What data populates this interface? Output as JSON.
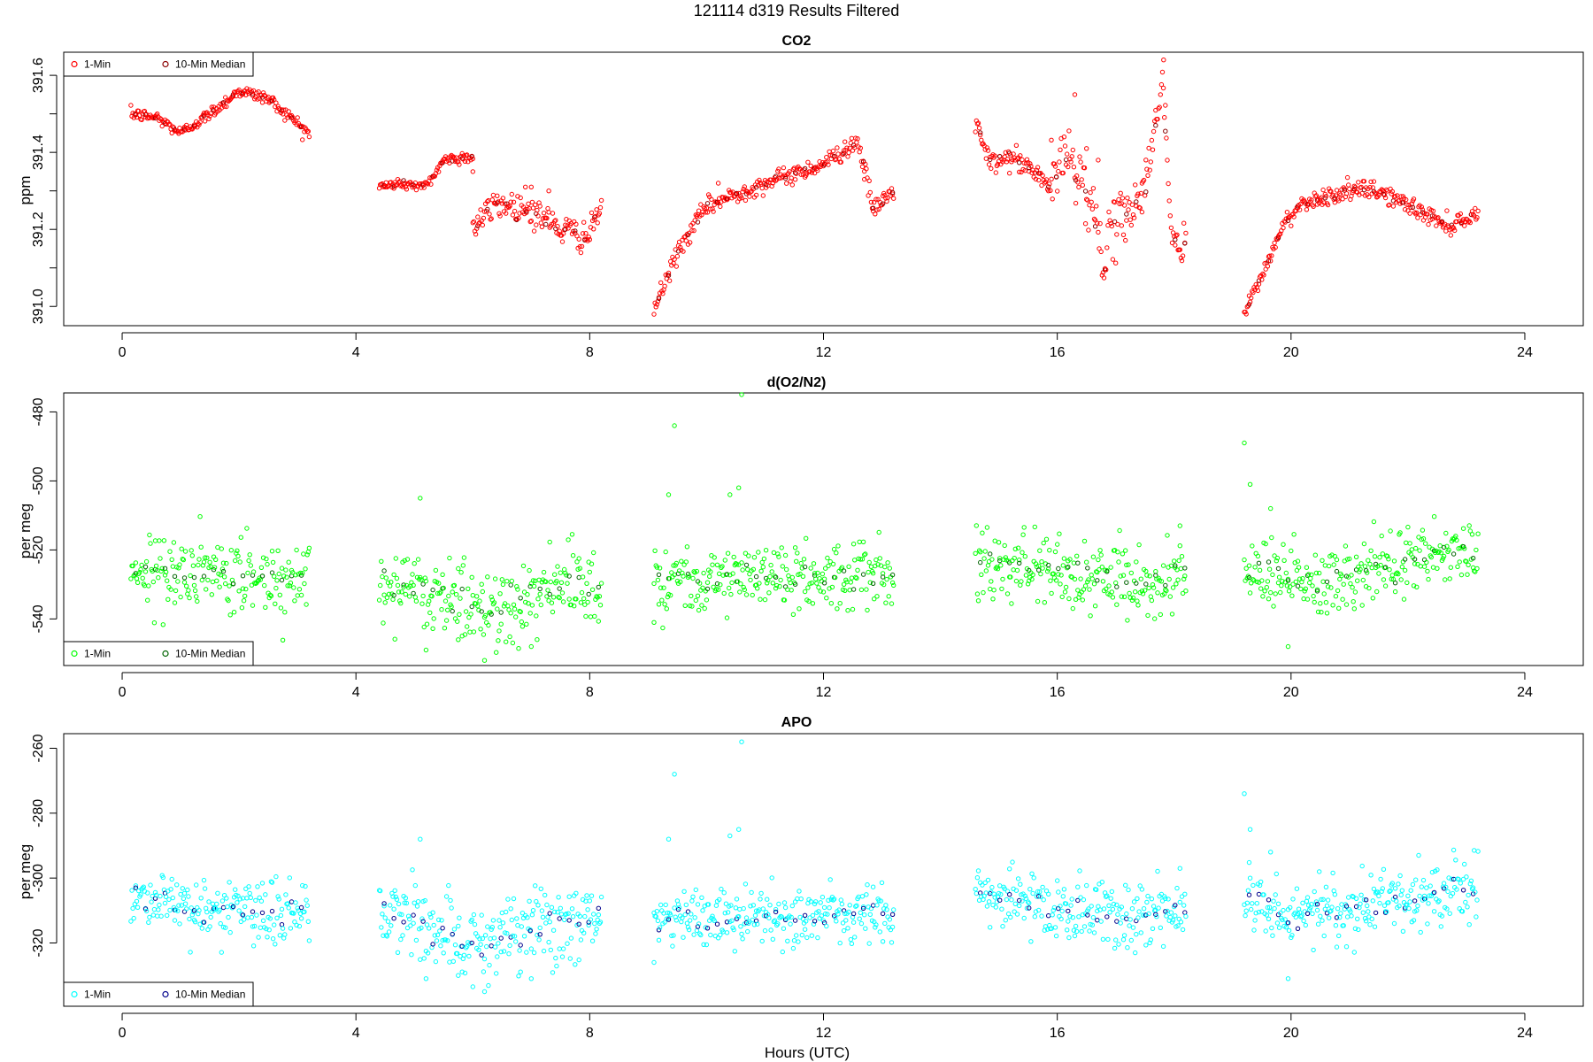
{
  "figure_title": "121114   d319   Results Filtered",
  "chart_data": [
    {
      "type": "scatter",
      "title": "CO2",
      "xlabel": "",
      "ylabel": "ppm",
      "xlim": [
        -1,
        25
      ],
      "ylim": [
        390.95,
        391.66
      ],
      "xticks": [
        0,
        4,
        8,
        12,
        16,
        20,
        24
      ],
      "yticks": [
        391.0,
        391.2,
        391.4,
        391.6
      ],
      "ytick_labels": [
        "391.0",
        "391.2",
        "391.4",
        "391.6"
      ],
      "ytick_minor": [
        391.1,
        391.3,
        391.5
      ],
      "legend_position": "top-left",
      "legend": [
        "1-Min",
        "10-Min Median"
      ],
      "series": [
        {
          "name": "1-Min",
          "color": "#ff0000",
          "role": "1min"
        },
        {
          "name": "10-Min Median",
          "color": "#8b0000",
          "role": "median"
        }
      ],
      "segments": [
        {
          "x_range": [
            0.15,
            3.2
          ],
          "y": [
            [
              0.15,
              391.5
            ],
            [
              0.6,
              391.49
            ],
            [
              1.0,
              391.45
            ],
            [
              1.5,
              391.5
            ],
            [
              2.0,
              391.56
            ],
            [
              2.5,
              391.54
            ],
            [
              3.2,
              391.45
            ]
          ],
          "noise": 0.008,
          "outliers": []
        },
        {
          "x_range": [
            4.4,
            6.0
          ],
          "y": [
            [
              4.4,
              391.31
            ],
            [
              4.8,
              391.32
            ],
            [
              5.2,
              391.31
            ],
            [
              5.5,
              391.38
            ],
            [
              6.0,
              391.39
            ]
          ],
          "noise": 0.008,
          "outliers": []
        },
        {
          "x_range": [
            6.0,
            8.2
          ],
          "y": [
            [
              6.0,
              391.2
            ],
            [
              6.4,
              391.27
            ],
            [
              7.0,
              391.25
            ],
            [
              7.5,
              391.2
            ],
            [
              8.0,
              391.18
            ],
            [
              8.2,
              391.27
            ]
          ],
          "noise": 0.02,
          "outliers": [
            [
              6.0,
              391.35
            ],
            [
              6.9,
              391.31
            ],
            [
              7.0,
              391.31
            ],
            [
              7.3,
              391.3
            ]
          ]
        },
        {
          "x_range": [
            9.1,
            13.2
          ],
          "y": [
            [
              9.1,
              390.99
            ],
            [
              9.5,
              391.14
            ],
            [
              10.0,
              391.26
            ],
            [
              11.0,
              391.32
            ],
            [
              12.0,
              391.37
            ],
            [
              12.6,
              391.43
            ],
            [
              12.85,
              391.25
            ],
            [
              13.2,
              391.3
            ]
          ],
          "noise": 0.012,
          "outliers": [
            [
              10.2,
              391.32
            ],
            [
              12.7,
              391.33
            ]
          ]
        },
        {
          "x_range": [
            14.6,
            15.9
          ],
          "y": [
            [
              14.6,
              391.48
            ],
            [
              14.85,
              391.37
            ],
            [
              15.2,
              391.39
            ],
            [
              15.6,
              391.35
            ],
            [
              15.9,
              391.31
            ]
          ],
          "noise": 0.015,
          "outliers": []
        },
        {
          "x_range": [
            15.9,
            17.1
          ],
          "y": [
            [
              15.9,
              391.32
            ],
            [
              16.2,
              391.4
            ],
            [
              16.5,
              391.3
            ],
            [
              16.8,
              391.13
            ],
            [
              17.1,
              391.23
            ]
          ],
          "noise": 0.04,
          "outliers": [
            [
              16.3,
              391.55
            ],
            [
              16.5,
              391.41
            ],
            [
              16.7,
              391.38
            ]
          ]
        },
        {
          "x_range": [
            17.1,
            18.2
          ],
          "y": [
            [
              17.1,
              391.23
            ],
            [
              17.5,
              391.3
            ],
            [
              17.8,
              391.6
            ],
            [
              17.95,
              391.2
            ],
            [
              18.1,
              391.13
            ],
            [
              18.2,
              391.18
            ]
          ],
          "noise": 0.03,
          "outliers": [
            [
              17.82,
              391.64
            ],
            [
              17.45,
              391.32
            ]
          ]
        },
        {
          "x_range": [
            19.2,
            20.5
          ],
          "y": [
            [
              19.2,
              390.98
            ],
            [
              19.5,
              391.08
            ],
            [
              19.9,
              391.22
            ],
            [
              20.2,
              391.27
            ],
            [
              20.5,
              391.28
            ]
          ],
          "noise": 0.01,
          "outliers": []
        },
        {
          "x_range": [
            20.5,
            23.2
          ],
          "y": [
            [
              20.5,
              391.28
            ],
            [
              21.0,
              391.3
            ],
            [
              21.5,
              391.3
            ],
            [
              21.9,
              391.27
            ],
            [
              22.3,
              391.24
            ],
            [
              22.7,
              391.21
            ],
            [
              23.2,
              391.24
            ]
          ],
          "noise": 0.012,
          "outliers": []
        }
      ]
    },
    {
      "type": "scatter",
      "title": "d(O2/N2)",
      "xlabel": "",
      "ylabel": "per meg",
      "xlim": [
        -1,
        25
      ],
      "ylim": [
        -553.5,
        -474.5
      ],
      "xticks": [
        0,
        4,
        8,
        12,
        16,
        20,
        24
      ],
      "yticks": [
        -540,
        -520,
        -500,
        -480
      ],
      "ytick_labels": [
        "-540",
        "-520",
        "-500",
        "-480"
      ],
      "ytick_minor": [],
      "legend_position": "bottom-left",
      "legend": [
        "1-Min",
        "10-Min Median"
      ],
      "series": [
        {
          "name": "1-Min",
          "color": "#00ff00",
          "role": "1min"
        },
        {
          "name": "10-Min Median",
          "color": "#006400",
          "role": "median"
        }
      ],
      "segments": [
        {
          "x_range": [
            0.15,
            3.2
          ],
          "y": [
            [
              0.15,
              -525
            ],
            [
              1.5,
              -528
            ],
            [
              3.2,
              -528
            ]
          ],
          "noise": 5,
          "outliers": []
        },
        {
          "x_range": [
            4.4,
            8.2
          ],
          "y": [
            [
              4.4,
              -528
            ],
            [
              5.5,
              -533
            ],
            [
              6.2,
              -538
            ],
            [
              7.0,
              -532
            ],
            [
              8.2,
              -530
            ]
          ],
          "noise": 6,
          "outliers": [
            [
              5.1,
              -505
            ],
            [
              5.2,
              -549
            ],
            [
              5.75,
              -546
            ],
            [
              6.2,
              -552
            ],
            [
              7.0,
              -548
            ]
          ]
        },
        {
          "x_range": [
            9.1,
            13.2
          ],
          "y": [
            [
              9.1,
              -528
            ],
            [
              11.0,
              -528
            ],
            [
              13.2,
              -528
            ]
          ],
          "noise": 5,
          "outliers": [
            [
              9.45,
              -484
            ],
            [
              9.35,
              -504
            ],
            [
              10.6,
              -475
            ],
            [
              10.4,
              -504
            ],
            [
              10.55,
              -502
            ],
            [
              9.1,
              -541
            ]
          ]
        },
        {
          "x_range": [
            14.6,
            18.2
          ],
          "y": [
            [
              14.6,
              -522
            ],
            [
              16.0,
              -526
            ],
            [
              17.0,
              -529
            ],
            [
              18.2,
              -528
            ]
          ],
          "noise": 5,
          "outliers": [
            [
              18.1,
              -513
            ]
          ]
        },
        {
          "x_range": [
            19.2,
            23.2
          ],
          "y": [
            [
              19.2,
              -525
            ],
            [
              20.0,
              -529
            ],
            [
              21.0,
              -526
            ],
            [
              22.0,
              -523
            ],
            [
              23.2,
              -520
            ]
          ],
          "noise": 5,
          "outliers": [
            [
              19.2,
              -489
            ],
            [
              19.3,
              -501
            ],
            [
              19.65,
              -508
            ],
            [
              19.95,
              -548
            ]
          ]
        }
      ]
    },
    {
      "type": "scatter",
      "title": "APO",
      "xlabel": "Hours (UTC)",
      "ylabel": "per meg",
      "xlim": [
        -1,
        25
      ],
      "ylim": [
        -339.5,
        -255.5
      ],
      "xticks": [
        0,
        4,
        8,
        12,
        16,
        20,
        24
      ],
      "yticks": [
        -320,
        -300,
        -280,
        -260
      ],
      "ytick_labels": [
        "-320",
        "-300",
        "-280",
        "-260"
      ],
      "ytick_minor": [],
      "legend_position": "bottom-left",
      "legend": [
        "1-Min",
        "10-Min Median"
      ],
      "series": [
        {
          "name": "1-Min",
          "color": "#00ffff",
          "role": "1min"
        },
        {
          "name": "10-Min Median",
          "color": "#00008b",
          "role": "median"
        }
      ],
      "segments": [
        {
          "x_range": [
            0.15,
            3.2
          ],
          "y": [
            [
              0.15,
              -305
            ],
            [
              1.5,
              -310
            ],
            [
              3.2,
              -311
            ]
          ],
          "noise": 5,
          "outliers": []
        },
        {
          "x_range": [
            4.4,
            8.2
          ],
          "y": [
            [
              4.4,
              -310
            ],
            [
              5.5,
              -316
            ],
            [
              6.2,
              -322
            ],
            [
              7.0,
              -316
            ],
            [
              8.2,
              -312
            ]
          ],
          "noise": 6,
          "outliers": [
            [
              5.1,
              -288
            ],
            [
              5.2,
              -331
            ],
            [
              5.75,
              -330
            ],
            [
              6.2,
              -335
            ],
            [
              7.0,
              -331
            ]
          ]
        },
        {
          "x_range": [
            9.1,
            13.2
          ],
          "y": [
            [
              9.1,
              -313
            ],
            [
              11.0,
              -312
            ],
            [
              13.2,
              -311
            ]
          ],
          "noise": 5,
          "outliers": [
            [
              9.45,
              -268
            ],
            [
              9.35,
              -288
            ],
            [
              10.6,
              -258
            ],
            [
              10.4,
              -287
            ],
            [
              10.55,
              -285
            ],
            [
              9.1,
              -326
            ]
          ]
        },
        {
          "x_range": [
            14.6,
            18.2
          ],
          "y": [
            [
              14.6,
              -305
            ],
            [
              16.0,
              -309
            ],
            [
              17.0,
              -312
            ],
            [
              18.2,
              -310
            ]
          ],
          "noise": 5,
          "outliers": [
            [
              18.1,
              -297
            ]
          ]
        },
        {
          "x_range": [
            19.2,
            23.2
          ],
          "y": [
            [
              19.2,
              -307
            ],
            [
              20.0,
              -311
            ],
            [
              21.0,
              -309
            ],
            [
              22.0,
              -306
            ],
            [
              23.2,
              -303
            ]
          ],
          "noise": 5,
          "outliers": [
            [
              19.2,
              -274
            ],
            [
              19.3,
              -285
            ],
            [
              19.65,
              -292
            ],
            [
              19.95,
              -331
            ]
          ]
        }
      ]
    }
  ]
}
